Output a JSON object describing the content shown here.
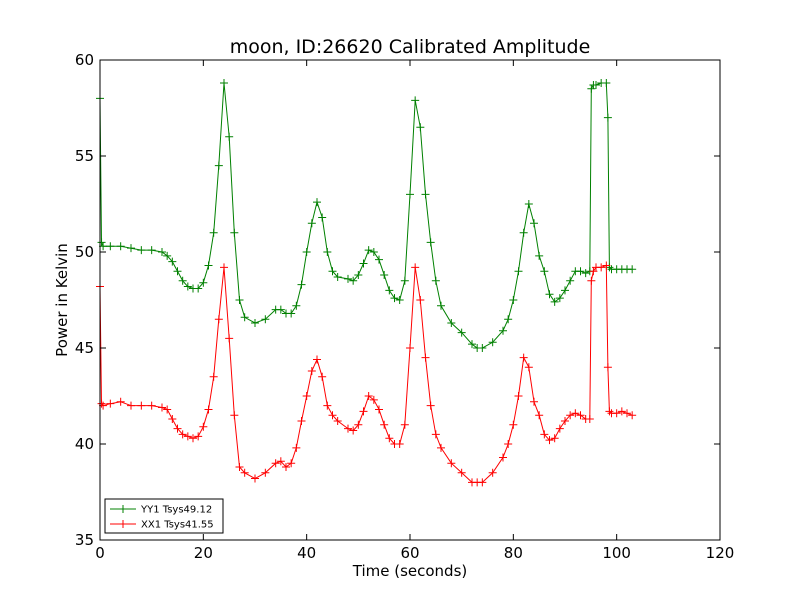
{
  "chart_data": {
    "type": "line",
    "title": "moon, ID:26620 Calibrated Amplitude",
    "xlabel": "Time (seconds)",
    "ylabel": "Power in Kelvin",
    "xlim": [
      0,
      120
    ],
    "ylim": [
      35,
      60
    ],
    "xticks": [
      0,
      20,
      40,
      60,
      80,
      100,
      120
    ],
    "yticks": [
      35,
      40,
      45,
      50,
      55,
      60
    ],
    "grid": false,
    "legend_position": "lower-left",
    "series": [
      {
        "name": "YY1 Tsys49.12",
        "color": "#008000",
        "marker": "+",
        "x": [
          0,
          0.3,
          0.6,
          2,
          4,
          6,
          8,
          10,
          12,
          13,
          14,
          15,
          16,
          17,
          18,
          19,
          20,
          21,
          22,
          23,
          24,
          25,
          26,
          27,
          28,
          30,
          32,
          34,
          35,
          36,
          37,
          38,
          39,
          40,
          41,
          42,
          43,
          44,
          45,
          46,
          48,
          49,
          50,
          51,
          52,
          53,
          54,
          55,
          56,
          57,
          58,
          59,
          60,
          61,
          62,
          63,
          64,
          65,
          66,
          68,
          70,
          72,
          73,
          74,
          76,
          78,
          79,
          80,
          81,
          82,
          83,
          84,
          85,
          86,
          87,
          88,
          89,
          90,
          91,
          92,
          93,
          94,
          94.8,
          95.1,
          95.5,
          96,
          97,
          98,
          98.3,
          98.6,
          99,
          100,
          101,
          102,
          103
        ],
        "y": [
          58.0,
          50.5,
          50.3,
          50.3,
          50.3,
          50.2,
          50.1,
          50.1,
          50.0,
          49.8,
          49.5,
          49.0,
          48.5,
          48.2,
          48.1,
          48.1,
          48.4,
          49.3,
          51.0,
          54.5,
          58.8,
          56.0,
          51.0,
          47.5,
          46.6,
          46.3,
          46.5,
          47.0,
          47.0,
          46.8,
          46.8,
          47.2,
          48.3,
          50.0,
          51.5,
          52.6,
          51.8,
          50.0,
          49.0,
          48.7,
          48.6,
          48.5,
          48.8,
          49.4,
          50.1,
          50.0,
          49.6,
          48.8,
          48.0,
          47.6,
          47.5,
          48.5,
          53.0,
          57.9,
          56.5,
          53.0,
          50.5,
          48.5,
          47.2,
          46.3,
          45.8,
          45.2,
          45.0,
          45.0,
          45.3,
          45.9,
          46.5,
          47.5,
          49.0,
          51.0,
          52.5,
          51.5,
          49.8,
          49.0,
          47.8,
          47.4,
          47.6,
          48.0,
          48.5,
          49.0,
          49.0,
          48.9,
          49.0,
          58.5,
          58.7,
          58.7,
          58.8,
          58.8,
          57.0,
          49.2,
          49.1,
          49.1,
          49.1,
          49.1,
          49.1
        ]
      },
      {
        "name": "XX1 Tsys41.55",
        "color": "#ff0000",
        "marker": "+",
        "x": [
          0,
          0.3,
          0.6,
          2,
          4,
          6,
          8,
          10,
          12,
          13,
          14,
          15,
          16,
          17,
          18,
          19,
          20,
          21,
          22,
          23,
          24,
          25,
          26,
          27,
          28,
          30,
          32,
          34,
          35,
          36,
          37,
          38,
          39,
          40,
          41,
          42,
          43,
          44,
          45,
          46,
          48,
          49,
          50,
          51,
          52,
          53,
          54,
          55,
          56,
          57,
          58,
          59,
          60,
          61,
          62,
          63,
          64,
          65,
          66,
          68,
          70,
          72,
          73,
          74,
          76,
          78,
          79,
          80,
          81,
          82,
          83,
          84,
          85,
          86,
          87,
          88,
          89,
          90,
          91,
          92,
          93,
          94,
          94.8,
          95.1,
          95.5,
          96,
          97,
          98,
          98.3,
          98.6,
          99,
          100,
          101,
          102,
          103
        ],
        "y": [
          48.2,
          42.1,
          42.0,
          42.1,
          42.2,
          42.0,
          42.0,
          42.0,
          41.9,
          41.8,
          41.3,
          40.8,
          40.5,
          40.4,
          40.3,
          40.4,
          40.9,
          41.8,
          43.5,
          46.5,
          49.2,
          45.5,
          41.5,
          38.8,
          38.5,
          38.2,
          38.5,
          39.0,
          39.1,
          38.8,
          39.0,
          39.8,
          41.2,
          42.5,
          43.8,
          44.4,
          43.5,
          42.0,
          41.5,
          41.2,
          40.8,
          40.7,
          41.0,
          41.7,
          42.5,
          42.3,
          41.8,
          41.0,
          40.3,
          40.0,
          40.0,
          41.0,
          45.0,
          49.2,
          47.5,
          44.5,
          42.0,
          40.5,
          39.8,
          39.0,
          38.5,
          38.0,
          38.0,
          38.0,
          38.5,
          39.3,
          40.0,
          41.0,
          42.5,
          44.5,
          44.0,
          42.2,
          41.5,
          40.5,
          40.2,
          40.3,
          40.8,
          41.2,
          41.5,
          41.6,
          41.5,
          41.3,
          41.3,
          48.5,
          49.0,
          49.2,
          49.2,
          49.3,
          44.0,
          41.7,
          41.6,
          41.6,
          41.7,
          41.6,
          41.5
        ]
      }
    ]
  }
}
